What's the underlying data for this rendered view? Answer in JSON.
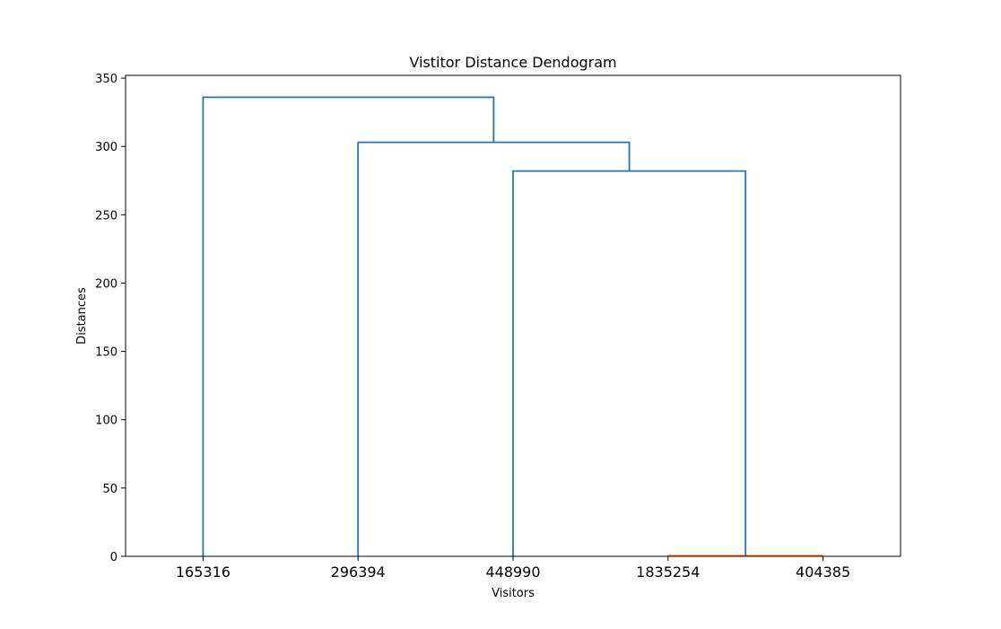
{
  "chart_data": {
    "type": "dendrogram",
    "title": "Vistitor Distance Dendogram",
    "xlabel": "Visitors",
    "ylabel": "Distances",
    "ylim": [
      0,
      352
    ],
    "yticks": [
      0,
      50,
      100,
      150,
      200,
      250,
      300,
      350
    ],
    "leaves": [
      "165316",
      "296394",
      "448990",
      "1835254",
      "404385"
    ],
    "colors": {
      "above_threshold": "#1f77b4",
      "cluster": "#ff7f0e"
    },
    "merges": [
      {
        "left": "1835254",
        "right": "404385",
        "height": 0.5,
        "color": "cluster"
      },
      {
        "left": "448990",
        "right": "1835254+404385",
        "height": 282,
        "color": "above_threshold"
      },
      {
        "left": "296394",
        "right": "448990+1835254+404385",
        "height": 303,
        "color": "above_threshold"
      },
      {
        "left": "165316",
        "right": "296394+448990+1835254+404385",
        "height": 336,
        "color": "above_threshold"
      }
    ],
    "grid": false,
    "legend": "none"
  }
}
